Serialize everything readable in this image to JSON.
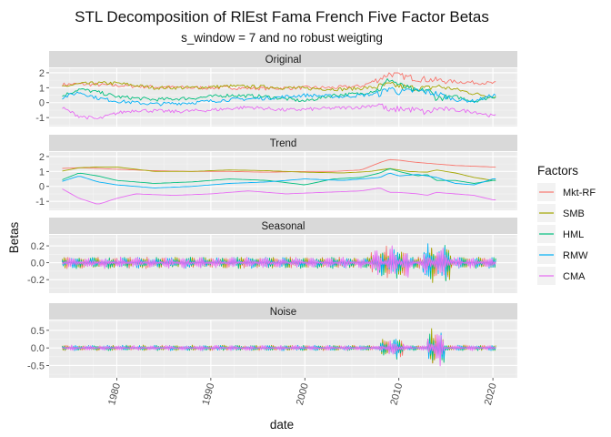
{
  "chart_data": {
    "type": "line",
    "title": "STL Decomposition of RlEst Fama French Five Factor Betas",
    "subtitle": "s_window = 7 and no robust weigting",
    "xlabel": "date",
    "ylabel": "Betas",
    "legend_title": "Factors",
    "legend_placement": "right",
    "grid": true,
    "x_ticks": [
      "1980",
      "1990",
      "2000",
      "2010",
      "2020"
    ],
    "xlim": [
      1972.8,
      2022.6
    ],
    "colors": {
      "Mkt-RF": "#F8766D",
      "SMB": "#A3A500",
      "HML": "#00BF7D",
      "RMW": "#00B0F6",
      "CMA": "#E76BF3"
    },
    "panels": [
      {
        "name": "Original",
        "ylim": [
          -1.6,
          2.3
        ],
        "y_ticks": [
          "-1",
          "0",
          "1",
          "2"
        ],
        "y_tick_values": [
          -1,
          0,
          1,
          2
        ],
        "series": [
          {
            "name": "Mkt-RF",
            "x": [
              1974,
              1976,
              1978,
              1980,
              1984,
              1988,
              1992,
              1996,
              2000,
              2003,
              2006,
              2008,
              2009,
              2010,
              2012,
              2014,
              2016,
              2018,
              2020
            ],
            "y": [
              1.2,
              1.25,
              1.2,
              1.15,
              1.05,
              1.0,
              1.0,
              0.95,
              1.0,
              1.0,
              1.1,
              1.6,
              1.95,
              1.8,
              1.6,
              1.5,
              1.4,
              1.35,
              1.3
            ]
          },
          {
            "name": "SMB",
            "x": [
              1974,
              1976,
              1978,
              1980,
              1982,
              1984,
              1988,
              1992,
              1996,
              2000,
              2004,
              2007,
              2009,
              2011,
              2013,
              2014,
              2016,
              2018,
              2020
            ],
            "y": [
              1.05,
              1.25,
              1.3,
              1.3,
              1.15,
              1.0,
              1.0,
              1.1,
              1.05,
              0.95,
              0.9,
              1.0,
              1.2,
              1.0,
              0.95,
              1.1,
              0.9,
              0.6,
              0.4
            ]
          },
          {
            "name": "HML",
            "x": [
              1974,
              1976,
              1978,
              1980,
              1984,
              1988,
              1992,
              1996,
              2000,
              2003,
              2006,
              2008,
              2009,
              2010,
              2012,
              2013,
              2014,
              2016,
              2018,
              2020
            ],
            "y": [
              0.4,
              0.9,
              0.7,
              0.4,
              0.2,
              0.3,
              0.5,
              0.4,
              0.1,
              0.5,
              0.6,
              0.9,
              1.6,
              1.2,
              0.7,
              0.9,
              0.3,
              0.4,
              0.1,
              0.4
            ]
          },
          {
            "name": "RMW",
            "x": [
              1974,
              1976,
              1978,
              1980,
              1984,
              1988,
              1992,
              1996,
              2000,
              2004,
              2008,
              2009,
              2010,
              2012,
              2014,
              2016,
              2018,
              2020
            ],
            "y": [
              0.3,
              0.7,
              0.3,
              0.1,
              -0.1,
              0.0,
              0.2,
              0.3,
              0.5,
              0.4,
              0.6,
              1.0,
              0.7,
              0.8,
              0.6,
              0.2,
              0.1,
              0.5
            ]
          },
          {
            "name": "CMA",
            "x": [
              1974,
              1976,
              1978,
              1980,
              1982,
              1986,
              1990,
              1994,
              1998,
              2002,
              2006,
              2008,
              2009,
              2010,
              2012,
              2013,
              2014,
              2016,
              2018,
              2020
            ],
            "y": [
              -0.3,
              -0.9,
              -1.1,
              -0.7,
              -0.5,
              -0.6,
              -0.5,
              -0.3,
              -0.5,
              -0.4,
              -0.3,
              -0.1,
              -0.6,
              -0.4,
              -0.5,
              -0.7,
              -0.4,
              -0.5,
              -0.6,
              -0.9
            ]
          }
        ],
        "noise_amplitude": 0.12
      },
      {
        "name": "Trend",
        "ylim": [
          -1.6,
          2.3
        ],
        "y_ticks": [
          "-1",
          "0",
          "1",
          "2"
        ],
        "y_tick_values": [
          -1,
          0,
          1,
          2
        ],
        "series": [
          {
            "name": "Mkt-RF",
            "x": [
              1974,
              1976,
              1978,
              1980,
              1984,
              1988,
              1992,
              1996,
              2000,
              2003,
              2006,
              2008,
              2009,
              2010,
              2012,
              2014,
              2016,
              2018,
              2020
            ],
            "y": [
              1.2,
              1.25,
              1.2,
              1.15,
              1.05,
              1.0,
              1.0,
              0.95,
              1.0,
              1.0,
              1.1,
              1.6,
              1.8,
              1.75,
              1.6,
              1.5,
              1.4,
              1.35,
              1.3
            ]
          },
          {
            "name": "SMB",
            "x": [
              1974,
              1976,
              1978,
              1980,
              1982,
              1984,
              1988,
              1992,
              1996,
              2000,
              2004,
              2007,
              2009,
              2011,
              2013,
              2014,
              2016,
              2018,
              2020
            ],
            "y": [
              1.0,
              1.25,
              1.3,
              1.3,
              1.15,
              1.0,
              1.0,
              1.1,
              1.05,
              0.95,
              0.9,
              1.0,
              1.2,
              1.0,
              0.95,
              1.1,
              0.9,
              0.6,
              0.4
            ]
          },
          {
            "name": "HML",
            "x": [
              1974,
              1976,
              1978,
              1980,
              1984,
              1988,
              1992,
              1996,
              2000,
              2003,
              2006,
              2008,
              2009,
              2010,
              2012,
              2013,
              2014,
              2016,
              2018,
              2020
            ],
            "y": [
              0.4,
              0.9,
              0.7,
              0.4,
              0.2,
              0.3,
              0.5,
              0.4,
              0.1,
              0.5,
              0.6,
              0.9,
              1.2,
              1.0,
              0.7,
              0.8,
              0.4,
              0.4,
              0.2,
              0.4
            ]
          },
          {
            "name": "RMW",
            "x": [
              1974,
              1976,
              1978,
              1980,
              1984,
              1988,
              1992,
              1996,
              2000,
              2004,
              2008,
              2009,
              2010,
              2012,
              2014,
              2016,
              2018,
              2020
            ],
            "y": [
              0.3,
              0.7,
              0.3,
              0.1,
              -0.1,
              0.0,
              0.2,
              0.3,
              0.5,
              0.4,
              0.6,
              0.9,
              0.7,
              0.8,
              0.6,
              0.2,
              0.1,
              0.5
            ]
          },
          {
            "name": "CMA",
            "x": [
              1974,
              1976,
              1978,
              1980,
              1982,
              1986,
              1990,
              1994,
              1998,
              2002,
              2006,
              2008,
              2009,
              2010,
              2012,
              2013,
              2014,
              2016,
              2018,
              2020
            ],
            "y": [
              -0.1,
              -0.8,
              -1.2,
              -0.8,
              -0.5,
              -0.6,
              -0.5,
              -0.3,
              -0.5,
              -0.4,
              -0.3,
              -0.1,
              -0.4,
              -0.4,
              -0.5,
              -0.6,
              -0.4,
              -0.5,
              -0.6,
              -0.9
            ]
          }
        ],
        "noise_amplitude": 0
      },
      {
        "name": "Seasonal",
        "ylim": [
          -0.36,
          0.33
        ],
        "y_ticks": [
          "-0.2",
          "0.0",
          "0.2"
        ],
        "y_tick_values": [
          -0.2,
          0.0,
          0.2
        ],
        "series": [
          {
            "name": "Mkt-RF",
            "x": [
              1974,
              2020
            ],
            "y": [
              0,
              0
            ]
          },
          {
            "name": "SMB",
            "x": [
              1974,
              2020
            ],
            "y": [
              0,
              0
            ]
          },
          {
            "name": "HML",
            "x": [
              1974,
              2020
            ],
            "y": [
              0,
              0
            ]
          },
          {
            "name": "RMW",
            "x": [
              1974,
              2020
            ],
            "y": [
              0,
              0
            ]
          },
          {
            "name": "CMA",
            "x": [
              1974,
              2020
            ],
            "y": [
              0,
              0
            ]
          }
        ],
        "oscillation": {
          "base_amplitude": 0.07,
          "burst_regions": [
            [
              2007,
              2011,
              0.22
            ],
            [
              2012.5,
              2015.5,
              0.28
            ]
          ]
        }
      },
      {
        "name": "Noise",
        "ylim": [
          -0.85,
          0.78
        ],
        "y_ticks": [
          "-0.5",
          "0.0",
          "0.5"
        ],
        "y_tick_values": [
          -0.5,
          0.0,
          0.5
        ],
        "series": [
          {
            "name": "Mkt-RF",
            "x": [
              1974,
              2020
            ],
            "y": [
              0,
              0
            ]
          },
          {
            "name": "SMB",
            "x": [
              1974,
              2020
            ],
            "y": [
              0,
              0
            ]
          },
          {
            "name": "HML",
            "x": [
              1974,
              2020
            ],
            "y": [
              0,
              0
            ]
          },
          {
            "name": "RMW",
            "x": [
              1974,
              2020
            ],
            "y": [
              0,
              0
            ]
          },
          {
            "name": "CMA",
            "x": [
              1974,
              2020
            ],
            "y": [
              0,
              0
            ]
          }
        ],
        "oscillation": {
          "base_amplitude": 0.08,
          "burst_regions": [
            [
              2008,
              2010.5,
              0.35
            ],
            [
              2013,
              2014.8,
              0.6
            ]
          ]
        }
      }
    ]
  }
}
